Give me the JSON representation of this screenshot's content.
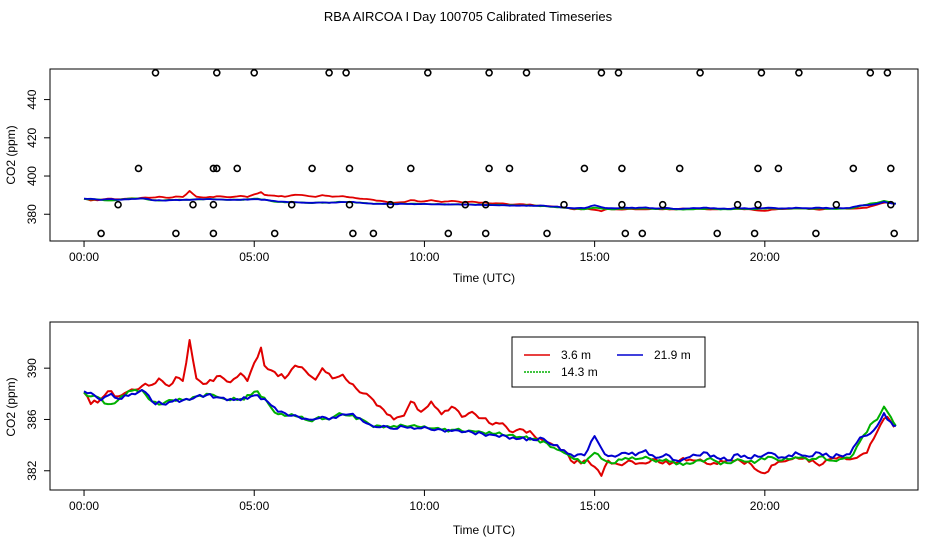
{
  "title": "RBA AIRCOA I  Day 100705  Calibrated Timeseries",
  "chart_data": [
    {
      "type": "scatter+line",
      "xlabel": "Time (UTC)",
      "ylabel": "CO2 (ppm)",
      "xlim": [
        -1.0,
        24.5
      ],
      "ylim": [
        366,
        456
      ],
      "xticks": [
        "00:00",
        "05:00",
        "10:00",
        "15:00",
        "20:00"
      ],
      "xtick_values": [
        0,
        5,
        10,
        15,
        20
      ],
      "yticks": [
        "380",
        "400",
        "420",
        "440"
      ],
      "ytick_values": [
        380,
        400,
        420,
        440
      ],
      "calibration_points": {
        "x": [
          0.5,
          1.0,
          1.6,
          2.1,
          2.7,
          3.2,
          3.8,
          3.8,
          3.8,
          3.9,
          3.9,
          4.5,
          5.0,
          5.6,
          6.1,
          6.7,
          7.2,
          7.7,
          7.8,
          7.8,
          7.9,
          8.5,
          9.0,
          9.6,
          10.1,
          10.7,
          11.2,
          11.8,
          11.8,
          11.9,
          11.9,
          12.5,
          13.0,
          13.6,
          14.1,
          14.7,
          15.2,
          15.7,
          15.8,
          15.8,
          15.9,
          16.4,
          17.0,
          17.5,
          18.1,
          18.6,
          19.2,
          19.7,
          19.8,
          19.8,
          19.9,
          20.4,
          21.0,
          21.5,
          22.1,
          22.6,
          23.1,
          23.6,
          23.7,
          23.7,
          23.8
        ],
        "y": [
          370,
          385,
          404,
          454,
          370,
          385,
          370,
          385,
          404,
          404,
          454,
          404,
          454,
          370,
          385,
          404,
          454,
          454,
          404,
          385,
          370,
          370,
          385,
          404,
          454,
          370,
          385,
          370,
          385,
          404,
          454,
          404,
          454,
          370,
          385,
          404,
          454,
          454,
          404,
          385,
          370,
          370,
          385,
          404,
          454,
          370,
          385,
          370,
          385,
          404,
          454,
          404,
          454,
          370,
          385,
          404,
          454,
          454,
          404,
          385,
          370
        ]
      },
      "series": [
        {
          "name": "3.6 m",
          "color": "#e00000",
          "level": "3.6m"
        },
        {
          "name": "14.3 m",
          "color": "#00b000",
          "level": "14.3m"
        },
        {
          "name": "21.9 m",
          "color": "#0000d0",
          "level": "21.9m"
        }
      ]
    },
    {
      "type": "line",
      "xlabel": "Time (UTC)",
      "ylabel": "CO2 (ppm)",
      "xlim": [
        -1.0,
        24.5
      ],
      "ylim": [
        380.5,
        393.6
      ],
      "xticks": [
        "00:00",
        "05:00",
        "10:00",
        "15:00",
        "20:00"
      ],
      "xtick_values": [
        0,
        5,
        10,
        15,
        20
      ],
      "yticks": [
        "382",
        "386",
        "390"
      ],
      "ytick_values": [
        382,
        386,
        390
      ],
      "legend": {
        "position": "top-center",
        "entries": [
          "3.6 m",
          "14.3 m",
          "21.9 m"
        ]
      },
      "series": [
        {
          "name": "3.6 m",
          "color": "#e00000",
          "anchors_x": [
            0.0,
            0.2,
            0.5,
            0.7,
            1.0,
            1.3,
            1.7,
            2.0,
            2.2,
            2.5,
            2.7,
            2.9,
            3.0,
            3.1,
            3.3,
            3.6,
            4.0,
            4.3,
            4.6,
            4.8,
            5.0,
            5.2,
            5.3,
            5.6,
            5.9,
            6.2,
            6.5,
            6.8,
            7.0,
            7.3,
            7.6,
            8.0,
            8.3,
            8.6,
            8.9,
            9.1,
            9.4,
            9.6,
            9.9,
            10.2,
            10.5,
            10.8,
            11.1,
            11.4,
            11.7,
            12.0,
            12.3,
            12.6,
            12.9,
            13.2,
            13.5,
            13.8,
            14.1,
            14.4,
            14.7,
            15.0,
            15.2,
            15.4,
            15.7,
            16.0,
            16.4,
            16.8,
            17.2,
            17.6,
            18.0,
            18.4,
            18.8,
            19.2,
            19.6,
            20.0,
            20.4,
            20.8,
            21.2,
            21.6,
            22.0,
            22.4,
            22.7,
            23.0,
            23.2,
            23.4,
            23.6,
            23.8
          ],
          "anchors_y": [
            388.1,
            387.2,
            387.6,
            388.2,
            387.8,
            388.2,
            388.6,
            388.7,
            389.2,
            388.6,
            389.3,
            389.0,
            390.4,
            392.2,
            389.2,
            388.8,
            389.4,
            388.9,
            389.6,
            389.0,
            390.4,
            391.6,
            390.2,
            389.7,
            389.2,
            390.2,
            389.8,
            389.1,
            390.0,
            389.2,
            389.5,
            388.4,
            388.0,
            387.1,
            386.4,
            386.0,
            386.3,
            387.4,
            386.6,
            387.4,
            386.4,
            387.0,
            386.2,
            386.6,
            386.1,
            385.6,
            385.7,
            385.0,
            385.2,
            384.8,
            384.3,
            384.0,
            383.6,
            382.6,
            382.8,
            382.3,
            381.6,
            382.8,
            382.5,
            382.8,
            382.6,
            382.9,
            382.5,
            383.0,
            382.8,
            382.5,
            382.7,
            382.9,
            382.5,
            381.8,
            382.7,
            382.9,
            383.0,
            382.4,
            383.0,
            382.9,
            383.0,
            383.4,
            384.5,
            385.6,
            386.2,
            385.4
          ]
        },
        {
          "name": "14.3 m",
          "color": "#00b000",
          "anchors_x": [
            0.0,
            0.2,
            0.5,
            0.7,
            1.0,
            1.3,
            1.7,
            2.0,
            2.3,
            2.6,
            3.0,
            3.3,
            3.6,
            4.0,
            4.3,
            4.6,
            4.9,
            5.1,
            5.3,
            5.5,
            5.7,
            6.0,
            6.3,
            6.6,
            6.9,
            7.2,
            7.5,
            7.8,
            8.1,
            8.4,
            8.7,
            9.0,
            9.3,
            9.6,
            9.9,
            10.2,
            10.5,
            10.8,
            11.1,
            11.4,
            11.7,
            12.0,
            12.3,
            12.6,
            12.9,
            13.2,
            13.5,
            13.8,
            14.1,
            14.4,
            14.7,
            15.0,
            15.3,
            15.6,
            15.9,
            16.2,
            16.5,
            16.8,
            17.1,
            17.4,
            17.7,
            18.0,
            18.3,
            18.6,
            18.9,
            19.2,
            19.5,
            19.8,
            20.1,
            20.4,
            20.7,
            21.0,
            21.3,
            21.6,
            21.9,
            22.2,
            22.5,
            22.8,
            23.1,
            23.3,
            23.5,
            23.7,
            23.85
          ],
          "anchors_y": [
            388.1,
            387.8,
            387.6,
            387.2,
            387.5,
            388.2,
            388.3,
            387.4,
            387.2,
            387.5,
            387.6,
            387.8,
            388.0,
            387.7,
            387.5,
            387.6,
            387.9,
            388.2,
            387.7,
            386.9,
            386.4,
            386.3,
            386.2,
            385.9,
            386.2,
            386.0,
            386.5,
            386.3,
            386.1,
            385.6,
            385.5,
            385.4,
            385.6,
            385.5,
            385.4,
            385.3,
            385.2,
            385.2,
            385.1,
            385.1,
            385.0,
            384.9,
            384.8,
            384.8,
            384.6,
            384.5,
            384.3,
            383.8,
            383.4,
            382.9,
            382.6,
            383.4,
            382.8,
            382.6,
            383.0,
            382.9,
            383.1,
            382.7,
            382.9,
            382.5,
            382.6,
            382.8,
            382.9,
            382.7,
            382.6,
            382.9,
            382.7,
            382.8,
            383.1,
            382.8,
            382.9,
            383.0,
            382.8,
            383.1,
            382.8,
            382.9,
            383.0,
            384.3,
            385.6,
            386.0,
            387.0,
            386.2,
            385.5
          ]
        },
        {
          "name": "21.9 m",
          "color": "#0000d0",
          "anchors_x": [
            0.0,
            0.3,
            0.5,
            0.8,
            1.1,
            1.4,
            1.7,
            2.0,
            2.3,
            2.6,
            3.0,
            3.3,
            3.6,
            4.0,
            4.3,
            4.6,
            4.9,
            5.1,
            5.3,
            5.5,
            5.7,
            6.0,
            6.3,
            6.6,
            6.9,
            7.2,
            7.5,
            7.8,
            8.1,
            8.4,
            8.7,
            9.0,
            9.3,
            9.6,
            9.9,
            10.2,
            10.5,
            10.8,
            11.1,
            11.4,
            11.7,
            12.0,
            12.3,
            12.6,
            12.9,
            13.2,
            13.5,
            13.8,
            14.1,
            14.4,
            14.7,
            15.0,
            15.3,
            15.6,
            15.9,
            16.2,
            16.5,
            16.8,
            17.1,
            17.4,
            17.7,
            18.0,
            18.3,
            18.6,
            18.9,
            19.2,
            19.5,
            19.8,
            20.1,
            20.4,
            20.7,
            21.0,
            21.3,
            21.6,
            21.9,
            22.2,
            22.5,
            22.8,
            23.1,
            23.3,
            23.5,
            23.7,
            23.85
          ],
          "anchors_y": [
            388.2,
            387.9,
            387.5,
            388.0,
            387.6,
            388.0,
            388.3,
            387.4,
            387.2,
            387.4,
            387.6,
            387.8,
            387.9,
            387.7,
            387.6,
            387.5,
            387.8,
            387.9,
            387.6,
            387.1,
            386.6,
            386.3,
            386.2,
            386.0,
            386.1,
            386.0,
            386.3,
            386.4,
            386.1,
            385.6,
            385.4,
            385.3,
            385.5,
            385.4,
            385.3,
            385.2,
            385.2,
            385.1,
            385.0,
            385.0,
            384.9,
            384.8,
            384.8,
            384.6,
            384.6,
            384.4,
            384.5,
            384.0,
            383.6,
            383.1,
            383.2,
            384.7,
            383.3,
            383.1,
            383.4,
            383.2,
            383.6,
            383.0,
            383.3,
            382.8,
            383.0,
            383.2,
            383.4,
            383.0,
            382.8,
            383.3,
            383.0,
            383.1,
            383.4,
            383.0,
            383.2,
            383.3,
            383.1,
            383.4,
            383.1,
            383.2,
            383.3,
            384.6,
            384.9,
            385.5,
            386.5,
            385.8,
            385.5
          ]
        }
      ]
    }
  ]
}
